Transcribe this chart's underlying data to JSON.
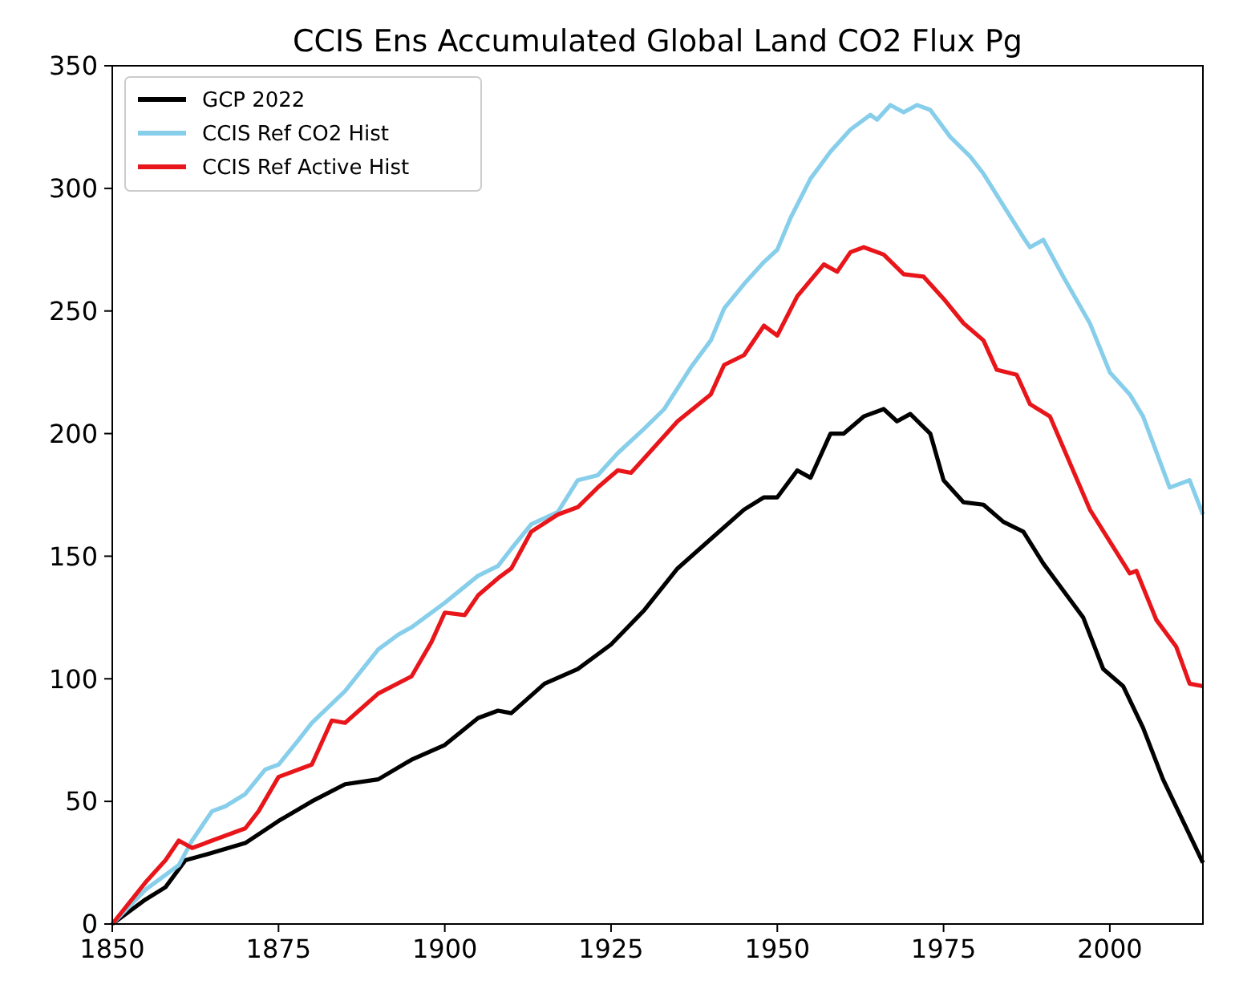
{
  "chart_data": {
    "type": "line",
    "title": "CCIS Ens Accumulated Global Land CO2 Flux Pg",
    "xlim": [
      1850,
      2014
    ],
    "xticks": [
      1850,
      1875,
      1900,
      1925,
      1950,
      1975,
      2000
    ],
    "ylim": [
      0,
      350
    ],
    "yticks": [
      0,
      50,
      100,
      150,
      200,
      250,
      300,
      350
    ],
    "legend": "top left",
    "grid": false,
    "series": [
      {
        "name": "GCP 2022",
        "color": "#000000",
        "x": [
          1850,
          1855,
          1858,
          1861,
          1865,
          1870,
          1875,
          1880,
          1885,
          1890,
          1895,
          1900,
          1905,
          1908,
          1910,
          1915,
          1920,
          1925,
          1930,
          1935,
          1940,
          1945,
          1948,
          1950,
          1953,
          1955,
          1958,
          1960,
          1963,
          1966,
          1968,
          1970,
          1973,
          1975,
          1978,
          1981,
          1984,
          1987,
          1990,
          1993,
          1996,
          1999,
          2002,
          2005,
          2008,
          2011,
          2014
        ],
        "values": [
          0,
          10,
          15,
          26,
          29,
          33,
          42,
          50,
          57,
          59,
          67,
          73,
          84,
          87,
          86,
          98,
          104,
          114,
          128,
          145,
          157,
          169,
          174,
          174,
          185,
          182,
          200,
          200,
          207,
          210,
          205,
          208,
          200,
          181,
          172,
          171,
          164,
          160,
          147,
          136,
          125,
          104,
          97,
          80,
          59,
          42,
          25
        ]
      },
      {
        "name": "CCIS Ref CO2 Hist",
        "color": "#87ceeb",
        "x": [
          1850,
          1855,
          1860,
          1862,
          1865,
          1867,
          1870,
          1873,
          1875,
          1878,
          1880,
          1885,
          1890,
          1893,
          1895,
          1900,
          1905,
          1908,
          1910,
          1913,
          1917,
          1920,
          1923,
          1926,
          1930,
          1933,
          1937,
          1940,
          1942,
          1945,
          1948,
          1950,
          1952,
          1955,
          1958,
          1961,
          1964,
          1965,
          1967,
          1969,
          1971,
          1973,
          1976,
          1979,
          1981,
          1984,
          1987,
          1988,
          1990,
          1993,
          1997,
          2000,
          2003,
          2005,
          2009,
          2012,
          2014
        ],
        "values": [
          0,
          14,
          24,
          34,
          46,
          48,
          53,
          63,
          65,
          75,
          82,
          95,
          112,
          118,
          121,
          131,
          142,
          146,
          153,
          163,
          168,
          181,
          183,
          192,
          202,
          210,
          227,
          238,
          251,
          261,
          270,
          275,
          288,
          304,
          315,
          324,
          330,
          328,
          334,
          331,
          334,
          332,
          321,
          313,
          306,
          293,
          280,
          276,
          279,
          264,
          245,
          225,
          216,
          207,
          178,
          181,
          167
        ]
      },
      {
        "name": "CCIS Ref Active Hist",
        "color": "#e8161a",
        "x": [
          1850,
          1855,
          1858,
          1860,
          1862,
          1865,
          1870,
          1872,
          1875,
          1880,
          1883,
          1885,
          1890,
          1895,
          1898,
          1900,
          1903,
          1905,
          1908,
          1910,
          1913,
          1917,
          1920,
          1923,
          1926,
          1928,
          1930,
          1935,
          1940,
          1942,
          1945,
          1948,
          1950,
          1953,
          1957,
          1959,
          1961,
          1963,
          1966,
          1969,
          1972,
          1975,
          1978,
          1981,
          1983,
          1986,
          1988,
          1991,
          1994,
          1997,
          2000,
          2003,
          2004,
          2007,
          2010,
          2012,
          2014
        ],
        "values": [
          0,
          17,
          26,
          34,
          31,
          34,
          39,
          46,
          60,
          65,
          83,
          82,
          94,
          101,
          115,
          127,
          126,
          134,
          141,
          145,
          160,
          167,
          170,
          178,
          185,
          184,
          190,
          205,
          216,
          228,
          232,
          244,
          240,
          256,
          269,
          266,
          274,
          276,
          273,
          265,
          264,
          255,
          245,
          238,
          226,
          224,
          212,
          207,
          188,
          169,
          156,
          143,
          144,
          124,
          113,
          98,
          97
        ]
      }
    ]
  }
}
